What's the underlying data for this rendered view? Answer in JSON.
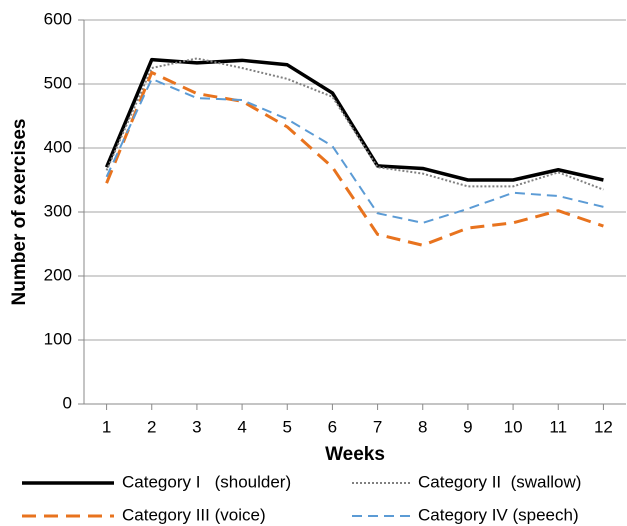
{
  "chart_data": {
    "type": "line",
    "x_label": "Weeks",
    "y_label": "Number of exercises",
    "x": [
      1,
      2,
      3,
      4,
      5,
      6,
      7,
      8,
      9,
      10,
      11,
      12
    ],
    "xlim": [
      0.5,
      12.5
    ],
    "xticks": [
      1,
      2,
      3,
      4,
      5,
      6,
      7,
      8,
      9,
      10,
      11,
      12
    ],
    "ylim": [
      0,
      600
    ],
    "yticks": [
      0,
      100,
      200,
      300,
      400,
      500,
      600
    ],
    "grid": true,
    "legend": "bottom",
    "series": [
      {
        "name": "Category I   (shoulder)",
        "color": "#000000",
        "style": "solid",
        "values": [
          370,
          538,
          533,
          537,
          530,
          486,
          372,
          368,
          350,
          350,
          366,
          350
        ]
      },
      {
        "name": "Category II  (swallow)",
        "color": "#808080",
        "style": "dotted",
        "values": [
          365,
          525,
          540,
          525,
          508,
          480,
          370,
          360,
          340,
          340,
          362,
          335
        ]
      },
      {
        "name": "Category III (voice)",
        "color": "#e8731e",
        "style": "dashed",
        "values": [
          345,
          518,
          485,
          473,
          433,
          370,
          265,
          248,
          275,
          283,
          302,
          278
        ]
      },
      {
        "name": "Category IV (speech)",
        "color": "#5b9bd5",
        "style": "dashed",
        "values": [
          355,
          508,
          478,
          475,
          445,
          403,
          298,
          283,
          305,
          330,
          325,
          308
        ]
      }
    ]
  }
}
